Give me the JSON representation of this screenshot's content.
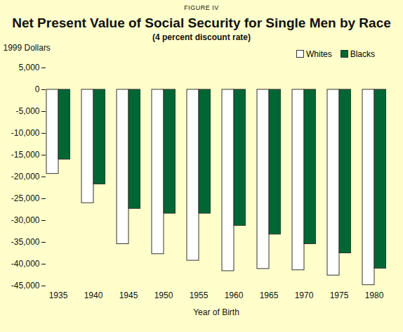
{
  "chart_data": {
    "type": "bar",
    "figure_label": "FIGURE IV",
    "title": "Net Present Value of Social Security for Single Men by Race",
    "subtitle": "(4 percent discount rate)",
    "y_label": "1999 Dollars",
    "x_label": "Year of Birth",
    "categories": [
      "1935",
      "1940",
      "1945",
      "1950",
      "1955",
      "1960",
      "1965",
      "1970",
      "1975",
      "1980"
    ],
    "series": [
      {
        "name": "Whites",
        "color": "#ffffff",
        "values": [
          -19300,
          -26000,
          -35400,
          -37700,
          -39200,
          -41600,
          -41100,
          -41400,
          -42600,
          -44800
        ]
      },
      {
        "name": "Blacks",
        "color": "#006633",
        "values": [
          -16000,
          -21700,
          -27300,
          -28400,
          -28400,
          -31200,
          -33200,
          -35400,
          -37500,
          -41000
        ]
      }
    ],
    "ylim": [
      -45000,
      5000
    ],
    "yticks": [
      {
        "value": -45000,
        "label": "-45,000"
      },
      {
        "value": -40000,
        "label": "-40,000"
      },
      {
        "value": -35000,
        "label": "-35,000"
      },
      {
        "value": -30000,
        "label": "-30,000"
      },
      {
        "value": -25000,
        "label": "-25,000"
      },
      {
        "value": -20000,
        "label": "-20,000"
      },
      {
        "value": -15000,
        "label": "-15,000"
      },
      {
        "value": -10000,
        "label": "-10,000"
      },
      {
        "value": -5000,
        "label": "-5,000"
      },
      0,
      {
        "value": 5000,
        "label": "5,000"
      }
    ],
    "grid": false,
    "legend": "top-right"
  }
}
